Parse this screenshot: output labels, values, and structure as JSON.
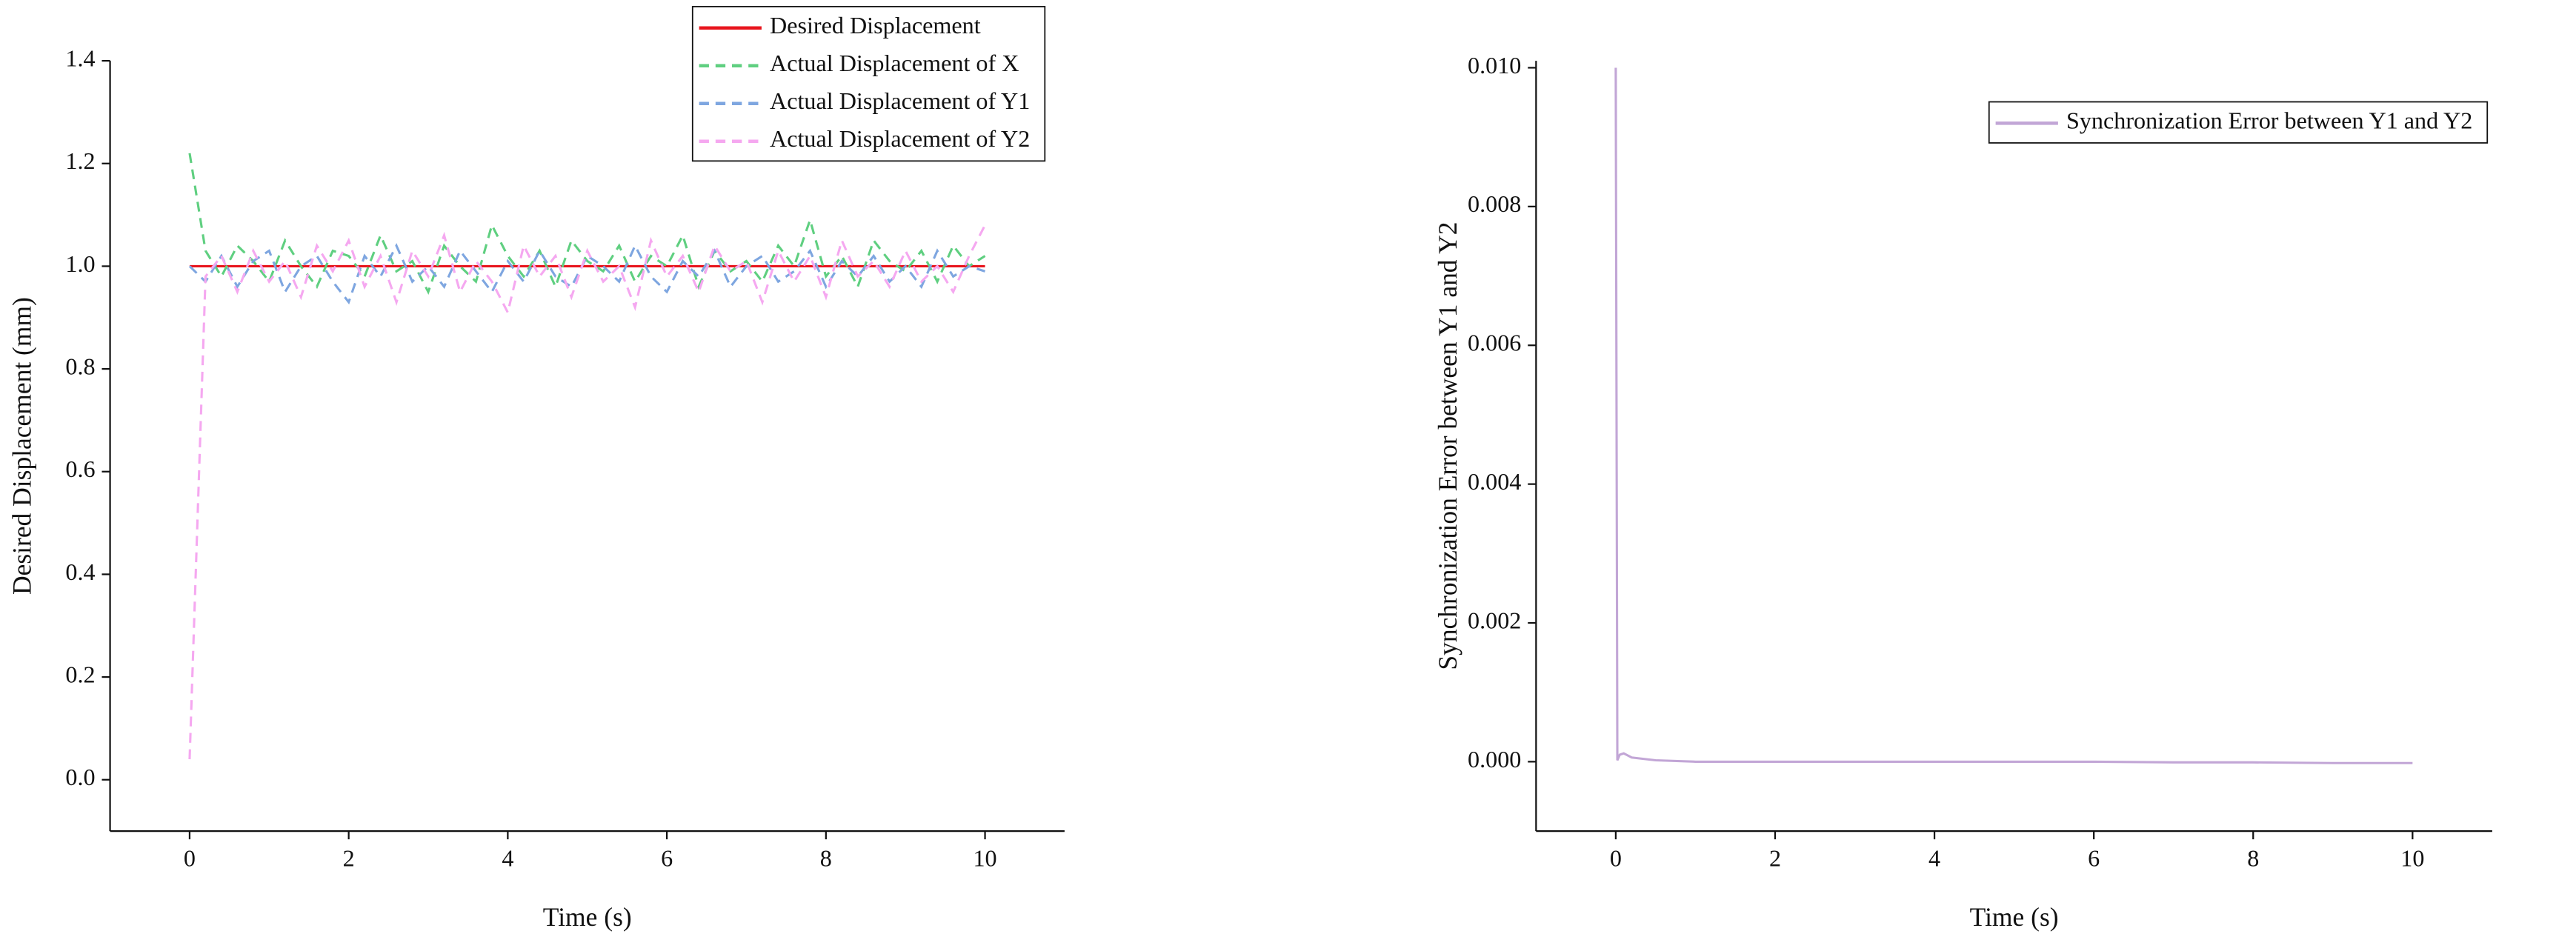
{
  "chart_data": [
    {
      "type": "line",
      "x_label": "Time (s)",
      "y_label": "Desired Displacement (mm)",
      "xlim": [
        -1,
        11
      ],
      "xticks": [
        0,
        2,
        4,
        6,
        8,
        10
      ],
      "ylim": [
        -0.1,
        1.4
      ],
      "yticks": [
        {
          "value": 0,
          "label": "0.0"
        },
        0.2,
        0.4,
        0.6,
        0.8,
        {
          "value": 1,
          "label": "1.0"
        },
        1.2,
        1.4
      ],
      "legend": "upper right",
      "x": [
        0,
        0.2,
        0.4,
        0.6,
        0.8,
        1,
        1.2,
        1.4,
        1.6,
        1.8,
        2,
        2.2,
        2.4,
        2.6,
        2.8,
        3,
        3.2,
        3.4,
        3.6,
        3.8,
        4,
        4.2,
        4.4,
        4.6,
        4.8,
        5,
        5.2,
        5.4,
        5.6,
        5.8,
        6,
        6.2,
        6.4,
        6.6,
        6.8,
        7,
        7.2,
        7.4,
        7.6,
        7.8,
        8,
        8.2,
        8.4,
        8.6,
        8.8,
        9,
        9.2,
        9.4,
        9.6,
        9.8,
        10
      ],
      "series": [
        {
          "name": "Desired Displacement",
          "color": "#e8141c",
          "dash": false,
          "values": [
            1,
            1,
            1,
            1,
            1,
            1,
            1,
            1,
            1,
            1,
            1,
            1,
            1,
            1,
            1,
            1,
            1,
            1,
            1,
            1,
            1,
            1,
            1,
            1,
            1,
            1,
            1,
            1,
            1,
            1,
            1,
            1,
            1,
            1,
            1,
            1,
            1,
            1,
            1,
            1,
            1,
            1,
            1,
            1,
            1,
            1,
            1,
            1,
            1,
            1,
            1
          ]
        },
        {
          "name": "Actual Displacement of X",
          "color": "#5fcf80",
          "dash": true,
          "values": [
            1.22,
            1.03,
            0.98,
            1.04,
            1.01,
            0.97,
            1.05,
            1.0,
            0.96,
            1.03,
            1.02,
            0.98,
            1.06,
            0.99,
            1.01,
            0.95,
            1.04,
            1.0,
            0.97,
            1.08,
            1.02,
            0.98,
            1.03,
            0.96,
            1.05,
            1.01,
            0.99,
            1.04,
            0.97,
            1.02,
            1.0,
            1.06,
            0.96,
            1.03,
            0.99,
            1.01,
            0.97,
            1.04,
            1.0,
            1.09,
            0.98,
            1.02,
            0.96,
            1.05,
            1.01,
            0.99,
            1.03,
            0.97,
            1.04,
            1.0,
            1.02
          ]
        },
        {
          "name": "Actual Displacement of Y1",
          "color": "#7ea6e0",
          "dash": true,
          "values": [
            1.0,
            0.97,
            1.02,
            0.96,
            1.01,
            1.03,
            0.95,
            1.0,
            1.02,
            0.97,
            0.93,
            1.02,
            0.98,
            1.04,
            0.97,
            1.0,
            0.96,
            1.03,
            0.99,
            0.95,
            1.01,
            0.97,
            1.03,
            0.98,
            0.96,
            1.02,
            1.0,
            0.97,
            1.04,
            0.98,
            0.95,
            1.01,
            0.98,
            1.03,
            0.96,
            1.0,
            1.02,
            0.97,
            0.99,
            1.03,
            0.96,
            1.01,
            0.98,
            1.02,
            0.97,
            1.0,
            0.96,
            1.03,
            0.98,
            1.0,
            0.99
          ]
        },
        {
          "name": "Actual Displacement of Y2",
          "color": "#f5a8f0",
          "dash": true,
          "values": [
            0.04,
            0.98,
            1.02,
            0.95,
            1.03,
            0.97,
            1.01,
            0.94,
            1.04,
            0.99,
            1.05,
            0.96,
            1.02,
            0.93,
            1.03,
            0.98,
            1.06,
            0.95,
            1.01,
            0.97,
            0.91,
            1.04,
            0.98,
            1.02,
            0.94,
            1.03,
            0.97,
            1.0,
            0.92,
            1.05,
            0.98,
            1.02,
            0.95,
            1.04,
            0.99,
            1.01,
            0.93,
            1.03,
            0.97,
            1.02,
            0.94,
            1.05,
            0.98,
            1.01,
            0.96,
            1.03,
            0.97,
            1.0,
            0.95,
            1.02,
            1.08
          ]
        }
      ]
    },
    {
      "type": "line",
      "x_label": "Time (s)",
      "y_label": "Synchronization Error between Y1 and Y2",
      "xlim": [
        -1,
        11
      ],
      "xticks": [
        0,
        2,
        4,
        6,
        8,
        10
      ],
      "ylim": [
        -0.001,
        0.0101
      ],
      "yticks": [
        {
          "value": 0,
          "label": "0.000"
        },
        {
          "value": 0.002,
          "label": "0.002"
        },
        {
          "value": 0.004,
          "label": "0.004"
        },
        {
          "value": 0.006,
          "label": "0.006"
        },
        {
          "value": 0.008,
          "label": "0.008"
        },
        {
          "value": 0.01,
          "label": "0.010"
        }
      ],
      "legend": "upper right",
      "x": [
        0,
        0.02,
        0.05,
        0.1,
        0.2,
        0.5,
        1,
        2,
        3,
        4,
        5,
        6,
        7,
        8,
        9,
        10
      ],
      "series": [
        {
          "name": "Synchronization Error between Y1 and Y2",
          "color": "#c2a6d6",
          "dash": false,
          "values": [
            0.01,
            2e-05,
            0.0001,
            0.00012,
            6e-05,
            2e-05,
            0,
            0,
            0,
            0,
            0,
            0,
            -1e-05,
            -1e-05,
            -2e-05,
            -2e-05
          ]
        }
      ]
    }
  ]
}
